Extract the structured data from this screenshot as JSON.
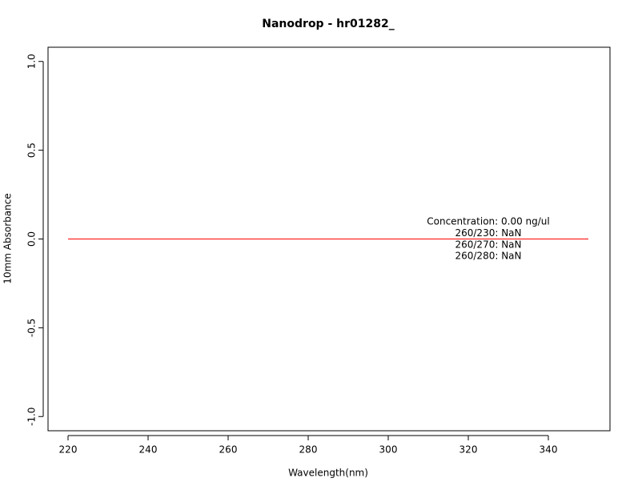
{
  "chart_data": {
    "type": "line",
    "title": "Nanodrop - hr01282_",
    "x_label": "Wavelength(nm)",
    "y_label": "10mm Absorbance",
    "x": [
      220,
      350
    ],
    "series": [
      {
        "color": "#ff0000",
        "values": [
          0,
          0
        ]
      }
    ],
    "xlim": [
      215,
      355.4
    ],
    "xticks": [
      220,
      240,
      260,
      280,
      300,
      320,
      340
    ],
    "ylim": [
      -1.08,
      1.08
    ],
    "yticks": [
      {
        "value": -1,
        "label": "-1.0"
      },
      -0.5,
      {
        "value": 0,
        "label": "0.0"
      },
      0.5,
      {
        "value": 1,
        "label": "1.0"
      }
    ],
    "annotations": [
      "Concentration: 0.00 ng/ul",
      "260/230: NaN",
      "260/270: NaN",
      "260/280: NaN"
    ]
  }
}
